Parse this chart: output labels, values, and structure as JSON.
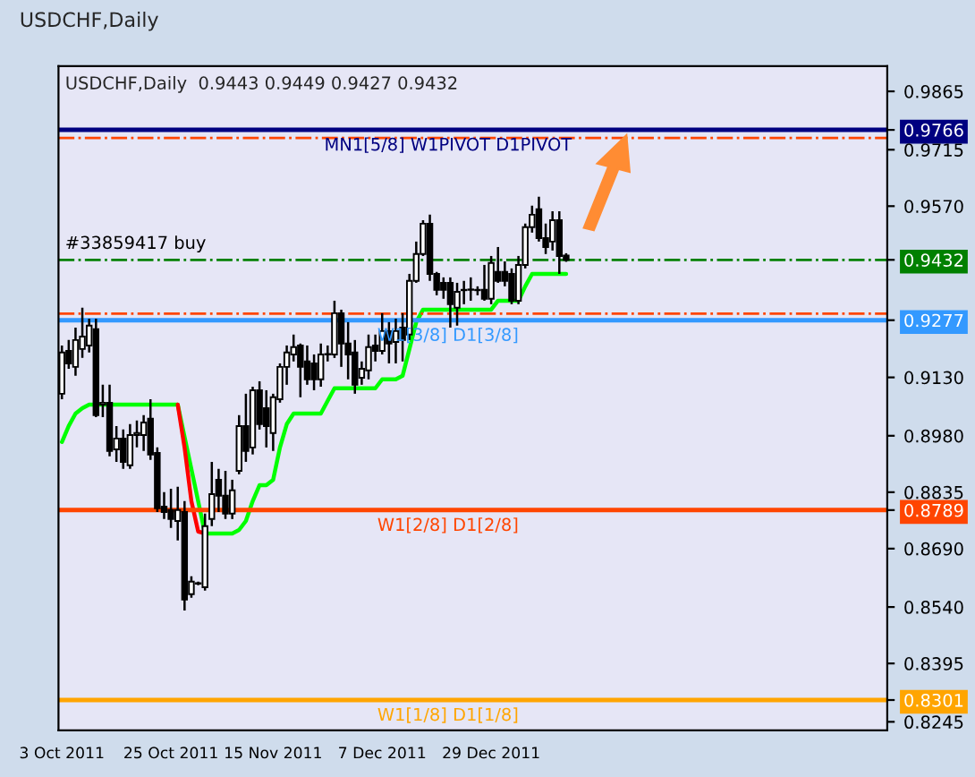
{
  "chart_data": {
    "type": "candlestick",
    "title": "USDCHF,Daily",
    "subtitle": "USDCHF,Daily  0.9443 0.9449 0.9427 0.9432",
    "categories": [
      "3 Oct 2011",
      null,
      null,
      null,
      null,
      null,
      null,
      null,
      null,
      null,
      null,
      null,
      null,
      null,
      null,
      null,
      "25 Oct 2011",
      null,
      null,
      null,
      null,
      null,
      null,
      null,
      null,
      null,
      null,
      null,
      null,
      null,
      null,
      "15 Nov 2011",
      null,
      null,
      null,
      null,
      null,
      null,
      null,
      null,
      null,
      null,
      null,
      null,
      null,
      null,
      null,
      "7 Dec 2011",
      null,
      null,
      null,
      null,
      null,
      null,
      null,
      null,
      null,
      null,
      null,
      null,
      null,
      null,
      null,
      "29 Dec 2011",
      null,
      null,
      null,
      null,
      null,
      null,
      null,
      null,
      null,
      null,
      null
    ],
    "ohlc": [
      [
        0.9088,
        0.9212,
        0.9074,
        0.9194
      ],
      [
        0.9198,
        0.9226,
        0.9152,
        0.9166
      ],
      [
        0.9157,
        0.9258,
        0.9134,
        0.9226
      ],
      [
        0.9203,
        0.9309,
        0.918,
        0.9235
      ],
      [
        0.9212,
        0.9281,
        0.9194,
        0.9263
      ],
      [
        0.9254,
        0.9281,
        0.9028,
        0.9033
      ],
      [
        0.906,
        0.9111,
        0.9028,
        0.9065
      ],
      [
        0.9065,
        0.9111,
        0.8927,
        0.8941
      ],
      [
        0.8945,
        0.9005,
        0.8913,
        0.8973
      ],
      [
        0.8973,
        0.8996,
        0.8895,
        0.8913
      ],
      [
        0.8904,
        0.901,
        0.8895,
        0.8982
      ],
      [
        0.8982,
        0.9019,
        0.895,
        0.8987
      ],
      [
        0.8982,
        0.9033,
        0.8941,
        0.9014
      ],
      [
        0.9024,
        0.9074,
        0.8918,
        0.8932
      ],
      [
        0.8936,
        0.895,
        0.8784,
        0.8794
      ],
      [
        0.8798,
        0.8835,
        0.8766,
        0.8784
      ],
      [
        0.8789,
        0.8844,
        0.8743,
        0.8766
      ],
      [
        0.8761,
        0.8849,
        0.8711,
        0.8789
      ],
      [
        0.8784,
        0.8812,
        0.8531,
        0.8559
      ],
      [
        0.8573,
        0.8619,
        0.8564,
        0.8605
      ],
      [
        0.86,
        0.8605,
        0.8596,
        0.8601
      ],
      [
        0.8591,
        0.878,
        0.8582,
        0.8748
      ],
      [
        0.8766,
        0.8913,
        0.8748,
        0.883
      ],
      [
        0.8867,
        0.8895,
        0.8784,
        0.8826
      ],
      [
        0.8826,
        0.889,
        0.8766,
        0.878
      ],
      [
        0.878,
        0.8867,
        0.8766,
        0.884
      ],
      [
        0.889,
        0.9033,
        0.8881,
        0.9005
      ],
      [
        0.9005,
        0.9088,
        0.8913,
        0.8941
      ],
      [
        0.895,
        0.9106,
        0.8932,
        0.9097
      ],
      [
        0.9097,
        0.912,
        0.8996,
        0.901
      ],
      [
        0.9051,
        0.9097,
        0.895,
        0.9005
      ],
      [
        0.8987,
        0.9088,
        0.8941,
        0.9079
      ],
      [
        0.9074,
        0.9166,
        0.9065,
        0.9157
      ],
      [
        0.9157,
        0.9212,
        0.9111,
        0.9194
      ],
      [
        0.9189,
        0.924,
        0.9171,
        0.9208
      ],
      [
        0.9212,
        0.9217,
        0.9079,
        0.9157
      ],
      [
        0.9171,
        0.9212,
        0.9111,
        0.9125
      ],
      [
        0.9166,
        0.9189,
        0.9097,
        0.9125
      ],
      [
        0.9125,
        0.9217,
        0.9106,
        0.9189
      ],
      [
        0.9189,
        0.9212,
        0.9171,
        0.919
      ],
      [
        0.9189,
        0.9327,
        0.918,
        0.9295
      ],
      [
        0.9295,
        0.9304,
        0.9157,
        0.9217
      ],
      [
        0.9217,
        0.9272,
        0.9125,
        0.9189
      ],
      [
        0.9194,
        0.9226,
        0.9088,
        0.9111
      ],
      [
        0.9129,
        0.9171,
        0.9111,
        0.9152
      ],
      [
        0.9148,
        0.924,
        0.9125,
        0.9208
      ],
      [
        0.9212,
        0.924,
        0.9171,
        0.9198
      ],
      [
        0.9198,
        0.9295,
        0.9189,
        0.9249
      ],
      [
        0.9249,
        0.9272,
        0.9166,
        0.9217
      ],
      [
        0.9221,
        0.9281,
        0.9166,
        0.9249
      ],
      [
        0.9258,
        0.9295,
        0.9171,
        0.9226
      ],
      [
        0.924,
        0.9396,
        0.9226,
        0.9378
      ],
      [
        0.9378,
        0.9479,
        0.9373,
        0.9447
      ],
      [
        0.9447,
        0.9534,
        0.9442,
        0.9525
      ],
      [
        0.9525,
        0.9548,
        0.9378,
        0.9396
      ],
      [
        0.9396,
        0.9401,
        0.9341,
        0.9355
      ],
      [
        0.9373,
        0.9387,
        0.9332,
        0.9355
      ],
      [
        0.9373,
        0.9387,
        0.9258,
        0.9318
      ],
      [
        0.9309,
        0.9373,
        0.9263,
        0.935
      ],
      [
        0.9355,
        0.9378,
        0.9318,
        0.9354
      ],
      [
        0.9355,
        0.9387,
        0.9327,
        0.9356
      ],
      [
        0.9355,
        0.9364,
        0.9341,
        0.9354
      ],
      [
        0.9355,
        0.9419,
        0.9327,
        0.9332
      ],
      [
        0.9332,
        0.9442,
        0.9318,
        0.9424
      ],
      [
        0.9401,
        0.9465,
        0.9373,
        0.9378
      ],
      [
        0.9401,
        0.9428,
        0.9364,
        0.9378
      ],
      [
        0.9396,
        0.941,
        0.9318,
        0.9327
      ],
      [
        0.9327,
        0.9442,
        0.9318,
        0.9419
      ],
      [
        0.9419,
        0.9525,
        0.941,
        0.9516
      ],
      [
        0.9516,
        0.9571,
        0.9502,
        0.9548
      ],
      [
        0.9562,
        0.9594,
        0.9479,
        0.9488
      ],
      [
        0.9488,
        0.9525,
        0.9447,
        0.9465
      ],
      [
        0.9479,
        0.9557,
        0.9456,
        0.9534
      ],
      [
        0.9534,
        0.9557,
        0.9396,
        0.9442
      ],
      [
        0.9443,
        0.9449,
        0.9427,
        0.9432
      ]
    ],
    "series": [
      {
        "type": "line",
        "color": "#00ff00",
        "values": [
          0.8964,
          0.9005,
          0.9037,
          0.9051,
          0.906,
          0.906,
          0.906,
          0.906,
          0.906,
          0.906,
          0.906,
          0.906,
          0.906,
          0.906,
          0.906,
          0.906,
          0.906,
          0.906,
          null,
          null,
          null,
          0.8729,
          0.8729,
          0.8729,
          0.8729,
          0.8729,
          0.8738,
          0.8761,
          0.8812,
          0.8853,
          0.8853,
          0.8867,
          0.895,
          0.901,
          0.9037,
          0.9037,
          0.9037,
          0.9037,
          0.9037,
          0.907,
          0.9102,
          0.9102,
          0.9102,
          0.9102,
          0.9102,
          0.9102,
          0.9102,
          0.9125,
          0.9125,
          0.9125,
          0.9134,
          0.9203,
          0.9272,
          0.9304,
          0.9304,
          0.9304,
          0.9304,
          0.9304,
          0.9304,
          0.9304,
          0.9304,
          0.9304,
          0.9304,
          0.9304,
          0.9327,
          0.9327,
          0.9327,
          0.9327,
          0.9364,
          0.9396,
          0.9396,
          0.9396,
          0.9396,
          0.9396,
          0.9396
        ]
      },
      {
        "type": "line",
        "color": "#ff0000",
        "values": [
          null,
          null,
          null,
          null,
          null,
          null,
          null,
          null,
          null,
          null,
          null,
          null,
          null,
          null,
          null,
          null,
          null,
          0.906,
          0.895,
          0.8812,
          0.8734,
          0.8729,
          null,
          null,
          null,
          null,
          null,
          null,
          null,
          null,
          null,
          null,
          null,
          null,
          null,
          null,
          null,
          null,
          null,
          null,
          null,
          null,
          null,
          null,
          null,
          null,
          null,
          null,
          null,
          null,
          null,
          null,
          null,
          null,
          null,
          null,
          null,
          null,
          null,
          null,
          null,
          null,
          null,
          null,
          null,
          null,
          null,
          null,
          null,
          null,
          null,
          null,
          null,
          null,
          null
        ]
      }
    ],
    "ref_lines": [
      {
        "axis": "y",
        "value": 0.9766,
        "label": "MN1[5/8] W1PIVOT D1PIVOT",
        "color": "#000080",
        "line_style": "solid"
      },
      {
        "axis": "y",
        "value": 0.9745,
        "color": "#ff4500",
        "line_style": "dashdot"
      },
      {
        "axis": "y",
        "value": 0.9432,
        "label": "#33859417 buy",
        "color": "#008000",
        "line_style": "dashdot"
      },
      {
        "axis": "y",
        "value": 0.9294,
        "color": "#ff4500",
        "line_style": "dashdot"
      },
      {
        "axis": "y",
        "value": 0.9277,
        "label": "W1[3/8] D1[3/8]",
        "color": "#3399ff",
        "line_style": "solid"
      },
      {
        "axis": "y",
        "value": 0.8789,
        "label": "W1[2/8] D1[2/8]",
        "color": "#ff4500",
        "line_style": "solid"
      },
      {
        "axis": "y",
        "value": 0.8301,
        "label": "W1[1/8] D1[1/8]",
        "color": "#ffa500",
        "line_style": "solid"
      }
    ],
    "ylim": [
      0.8223,
      0.993
    ],
    "yticks": [
      {
        "value": 0.9766,
        "label": "0.9766"
      },
      {
        "value": 0.9432,
        "label": "0.9432"
      },
      {
        "value": 0.9277,
        "label": "0.9277"
      },
      {
        "value": 0.8789,
        "label": "0.8789"
      },
      {
        "value": 0.8301,
        "label": "0.8301"
      },
      {
        "value": 0.9865,
        "label": "0.9865"
      },
      {
        "value": 0.9715,
        "label": "0.9715"
      },
      {
        "value": 0.957,
        "label": "0.9570"
      },
      {
        "value": 0.913,
        "label": "0.9130"
      },
      {
        "value": 0.898,
        "label": "0.8980"
      },
      {
        "value": 0.8835,
        "label": "0.8835"
      },
      {
        "value": 0.869,
        "label": "0.8690"
      },
      {
        "value": 0.854,
        "label": "0.8540"
      },
      {
        "value": 0.8395,
        "label": "0.8395"
      },
      {
        "value": 0.8245,
        "label": "0.8245"
      }
    ],
    "grid": false,
    "legend": false
  }
}
